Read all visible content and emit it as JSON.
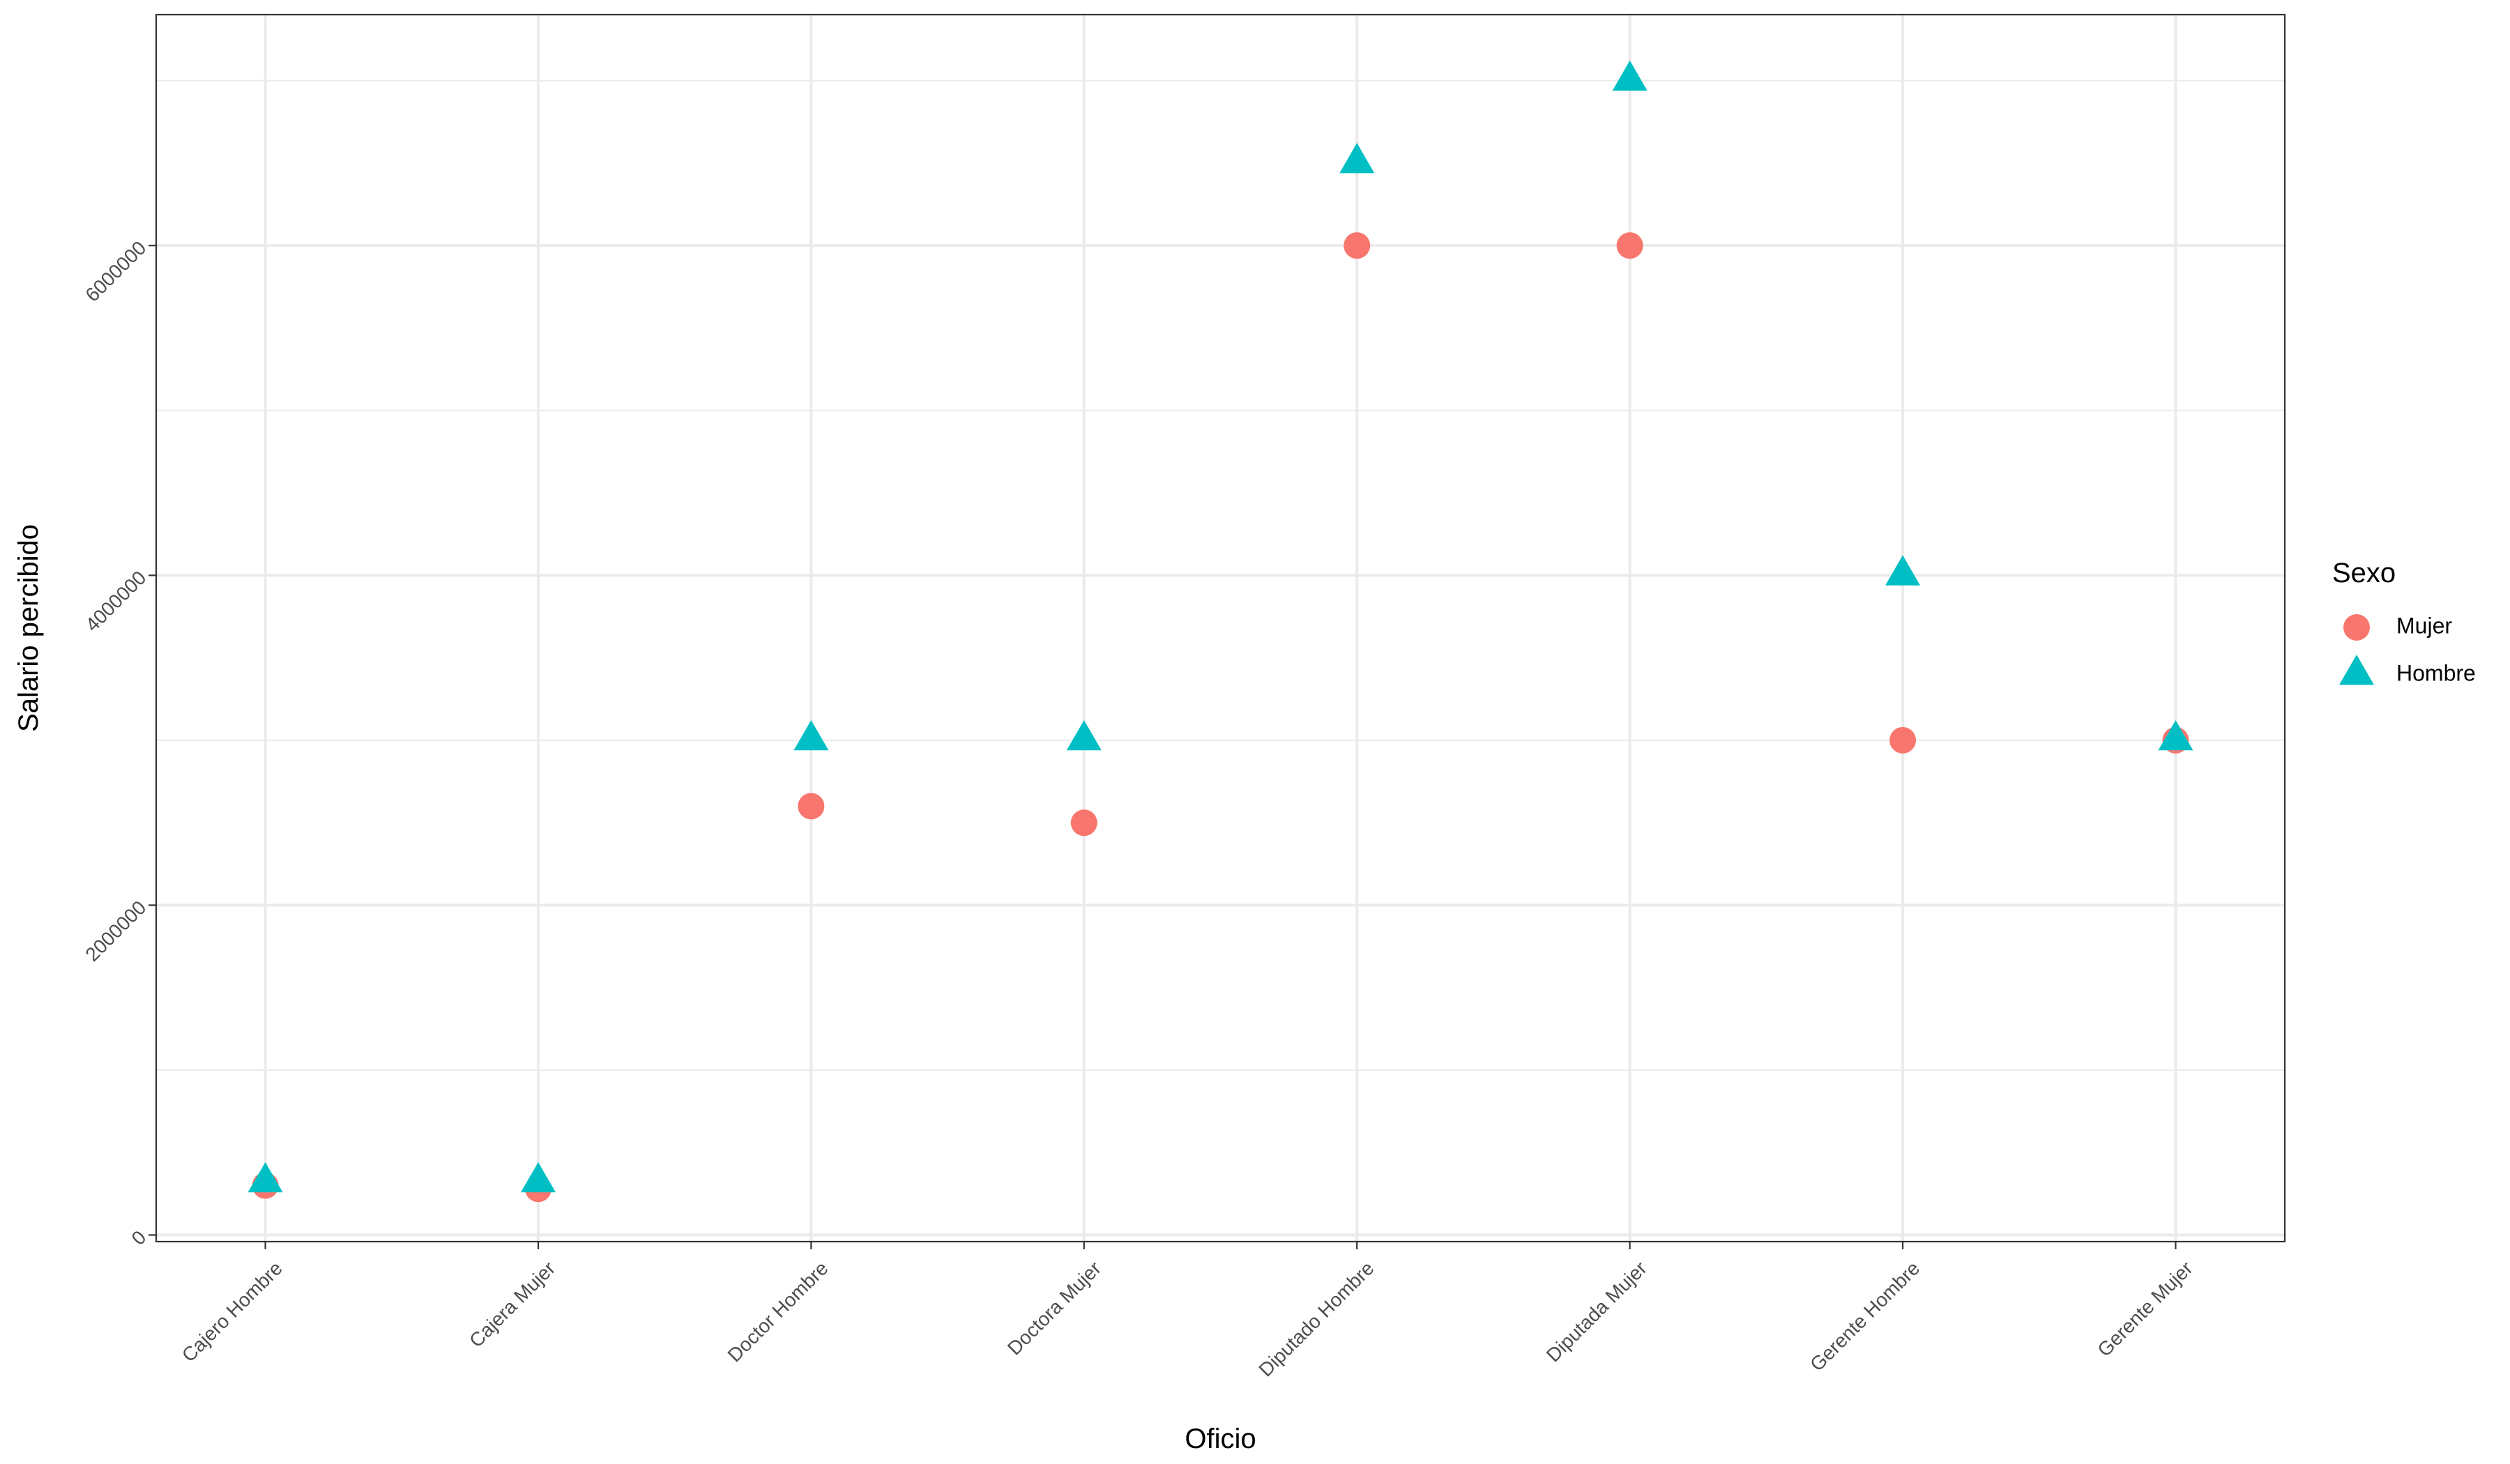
{
  "chart_data": {
    "type": "scatter",
    "xlabel": "Oficio",
    "ylabel": "Salario percibido",
    "categories": [
      "Cajero Hombre",
      "Cajera Mujer",
      "Doctor Hombre",
      "Doctora Mujer",
      "Diputado Hombre",
      "Diputada Mujer",
      "Gerente Hombre",
      "Gerente Mujer"
    ],
    "ylim": [
      -40000,
      7400000
    ],
    "y_ticks": [
      0,
      2000000,
      4000000,
      6000000
    ],
    "y_tick_labels": [
      "0",
      "2000000",
      "4000000",
      "6000000"
    ],
    "y_minor_ticks": [
      1000000,
      3000000,
      5000000,
      7000000
    ],
    "grid": true,
    "legend": {
      "title": "Sexo",
      "position": "right"
    },
    "series": [
      {
        "name": "Mujer",
        "shape": "circle",
        "color": "#F8766D",
        "values": [
          300000,
          280000,
          2600000,
          2500000,
          6000000,
          6000000,
          3000000,
          3000000
        ]
      },
      {
        "name": "Hombre",
        "shape": "triangle",
        "color": "#00BFC4",
        "values": [
          320000,
          320000,
          3000000,
          3000000,
          6500000,
          7000000,
          4000000,
          3000000
        ]
      }
    ]
  }
}
